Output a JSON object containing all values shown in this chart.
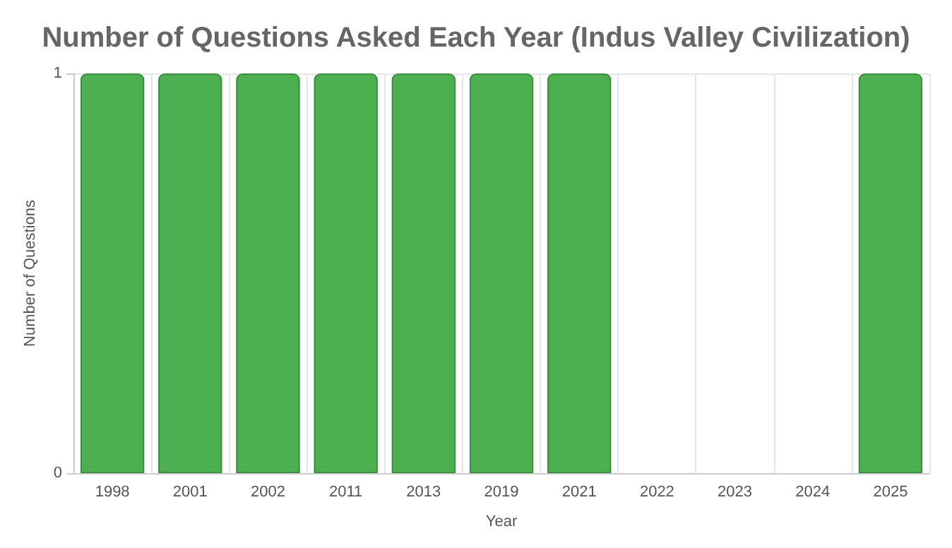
{
  "chart_data": {
    "type": "bar",
    "title": "Number of Questions Asked Each Year (Indus Valley Civilization)",
    "xlabel": "Year",
    "ylabel": "Number of Questions",
    "categories": [
      "1998",
      "2001",
      "2002",
      "2011",
      "2013",
      "2019",
      "2021",
      "2022",
      "2023",
      "2024",
      "2025"
    ],
    "values": [
      1,
      1,
      1,
      1,
      1,
      1,
      1,
      0,
      0,
      0,
      1
    ],
    "color": "#4caf50",
    "ylim": [
      0,
      1
    ],
    "yticks": [
      0,
      1
    ],
    "grid": true
  }
}
